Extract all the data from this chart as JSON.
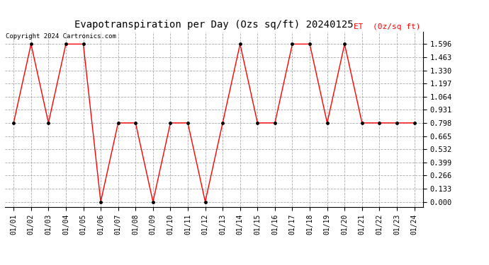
{
  "title": "Evapotranspiration per Day (Ozs sq/ft) 20240125",
  "copyright": "Copyright 2024 Cartronics.com",
  "legend_label": "ET  (0z/sq ft)",
  "x_labels": [
    "01/01",
    "01/02",
    "01/03",
    "01/04",
    "01/05",
    "01/06",
    "01/07",
    "01/08",
    "01/09",
    "01/10",
    "01/11",
    "01/12",
    "01/13",
    "01/14",
    "01/15",
    "01/16",
    "01/17",
    "01/18",
    "01/19",
    "01/20",
    "01/21",
    "01/22",
    "01/23",
    "01/24"
  ],
  "y_values": [
    0.798,
    1.596,
    0.798,
    1.596,
    1.596,
    0.0,
    0.798,
    0.798,
    0.0,
    0.798,
    0.798,
    0.0,
    0.798,
    1.596,
    0.798,
    0.798,
    1.596,
    1.596,
    0.798,
    1.596,
    0.798,
    0.798,
    0.798,
    0.798
  ],
  "y_ticks": [
    0.0,
    0.133,
    0.266,
    0.399,
    0.532,
    0.665,
    0.798,
    0.931,
    1.064,
    1.197,
    1.33,
    1.463,
    1.596
  ],
  "line_color": "red",
  "marker_color": "black",
  "grid_color": "#aaaaaa",
  "background_color": "white",
  "title_fontsize": 10,
  "legend_color": "red",
  "copyright_color": "black",
  "copyright_fontsize": 6.5,
  "tick_fontsize": 7,
  "ytick_fontsize": 7.5
}
